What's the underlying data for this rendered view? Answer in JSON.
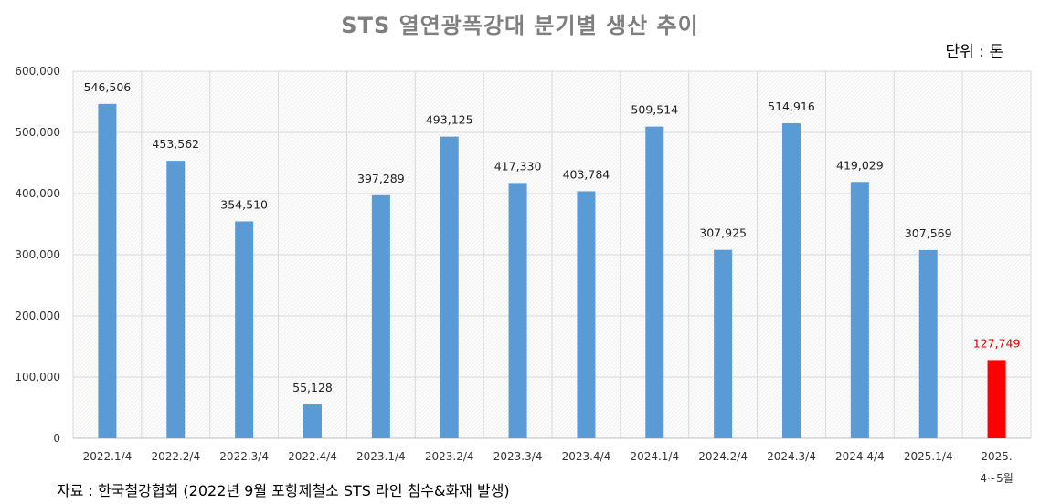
{
  "title": "STS 열연광폭강대 분기별 생산 추이",
  "unit_label": "단위 : 톤",
  "source": "자료 : 한국철강협회 (2022년 9월 포항제철소 STS 라인 침수&화재 발생)",
  "colors": {
    "bar": "#5b9bd5",
    "highlight_bar": "#ff0000",
    "highlight_label": "#e00000",
    "grid": "#d9d9d9"
  },
  "chart_data": {
    "type": "bar",
    "categories": [
      "2022.1/4",
      "2022.2/4",
      "2022.3/4",
      "2022.4/4",
      "2023.1/4",
      "2023.2/4",
      "2023.3/4",
      "2023.4/4",
      "2024.1/4",
      "2024.2/4",
      "2024.3/4",
      "2024.4/4",
      "2025.1/4",
      "2025.4~5월"
    ],
    "category_lines": [
      [
        "2022.1/4"
      ],
      [
        "2022.2/4"
      ],
      [
        "2022.3/4"
      ],
      [
        "2022.4/4"
      ],
      [
        "2023.1/4"
      ],
      [
        "2023.2/4"
      ],
      [
        "2023.3/4"
      ],
      [
        "2023.4/4"
      ],
      [
        "2024.1/4"
      ],
      [
        "2024.2/4"
      ],
      [
        "2024.3/4"
      ],
      [
        "2024.4/4"
      ],
      [
        "2025.1/4"
      ],
      [
        "2025.",
        "4~5월"
      ]
    ],
    "values": [
      546506,
      453562,
      354510,
      55128,
      397289,
      493125,
      417330,
      403784,
      509514,
      307925,
      514916,
      419029,
      307569,
      127749
    ],
    "value_labels": [
      "546,506",
      "453,562",
      "354,510",
      "55,128",
      "397,289",
      "493,125",
      "417,330",
      "403,784",
      "509,514",
      "307,925",
      "514,916",
      "419,029",
      "307,569",
      "127,749"
    ],
    "highlight_index": 13,
    "ylim": [
      0,
      600000
    ],
    "y_ticks": [
      0,
      100000,
      200000,
      300000,
      400000,
      500000,
      600000
    ],
    "y_tick_labels": [
      "0",
      "100,000",
      "200,000",
      "300,000",
      "400,000",
      "500,000",
      "600,000"
    ],
    "grid": true,
    "xlabel": "",
    "ylabel": ""
  }
}
